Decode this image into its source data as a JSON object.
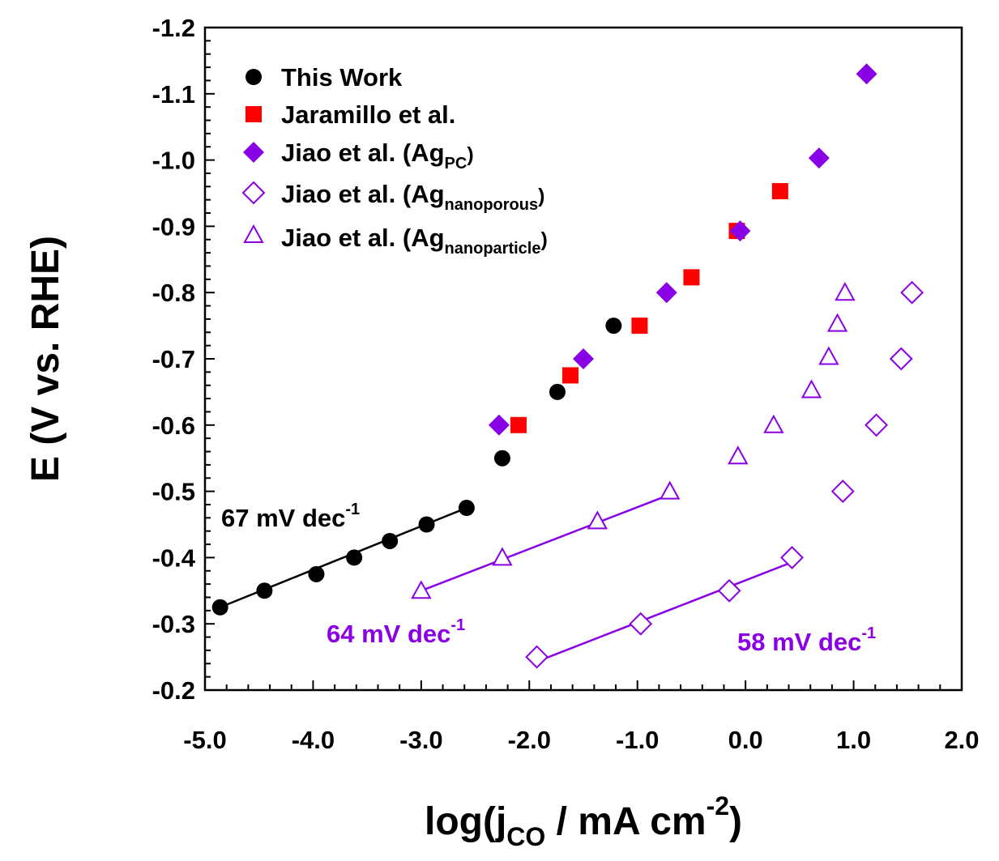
{
  "chart_data": {
    "type": "scatter",
    "title": "",
    "xlabel": {
      "main": "log(j",
      "sub": "CO",
      "rest": " / mA cm",
      "sup": "-2",
      "end": ")"
    },
    "ylabel": "E (V vs. RHE)",
    "xlim": [
      -5.0,
      2.0
    ],
    "ylim": [
      -0.2,
      -1.2
    ],
    "x_ticks": [
      -5.0,
      -4.0,
      -3.0,
      -2.0,
      -1.0,
      0.0,
      1.0,
      2.0
    ],
    "x_tick_labels": [
      "-5.0",
      "-4.0",
      "-3.0",
      "-2.0",
      "-1.0",
      "0.0",
      "1.0",
      "2.0"
    ],
    "y_ticks": [
      -0.2,
      -0.3,
      -0.4,
      -0.5,
      -0.6,
      -0.7,
      -0.8,
      -0.9,
      -1.0,
      -1.1,
      -1.2
    ],
    "y_tick_labels": [
      "-0.2",
      "-0.3",
      "-0.4",
      "-0.5",
      "-0.6",
      "-0.7",
      "-0.8",
      "-0.9",
      "-1.0",
      "-1.1",
      "-1.2"
    ],
    "grid": false,
    "legend_position": "top-left",
    "series": [
      {
        "name": "This Work",
        "marker": "circle-filled",
        "color": "#000000",
        "x": [
          -4.86,
          -4.45,
          -3.97,
          -3.62,
          -3.29,
          -2.95,
          -2.58,
          -2.25,
          -1.74,
          -1.22
        ],
        "y": [
          -0.325,
          -0.35,
          -0.375,
          -0.4,
          -0.425,
          -0.45,
          -0.475,
          -0.55,
          -0.65,
          -0.75
        ]
      },
      {
        "name": "Jaramillo et al.",
        "marker": "square-filled",
        "color": "#ff0000",
        "x": [
          -2.1,
          -1.62,
          -0.98,
          -0.5,
          -0.08,
          0.32
        ],
        "y": [
          -0.6,
          -0.675,
          -0.75,
          -0.823,
          -0.893,
          -0.953
        ]
      },
      {
        "name": "Jiao et al. (Ag",
        "name_sub": "PC",
        "name_end": ")",
        "marker": "diamond-filled",
        "color": "#8a00e6",
        "x": [
          -2.28,
          -1.5,
          -0.73,
          -0.05,
          0.68,
          1.12
        ],
        "y": [
          -0.6,
          -0.7,
          -0.8,
          -0.893,
          -1.003,
          -1.13
        ]
      },
      {
        "name": "Jiao et al. (Ag",
        "name_sub": "nanoporous",
        "name_end": ")",
        "marker": "diamond-open",
        "color": "#8a00e6",
        "x": [
          -1.93,
          -0.97,
          -0.15,
          0.43,
          0.9,
          1.21,
          1.44,
          1.54
        ],
        "y": [
          -0.25,
          -0.3,
          -0.35,
          -0.4,
          -0.5,
          -0.6,
          -0.7,
          -0.8
        ]
      },
      {
        "name": "Jiao et al. (Ag",
        "name_sub": "nanoparticle",
        "name_end": ")",
        "marker": "triangle-open",
        "color": "#8a00e6",
        "x": [
          -3.0,
          -2.25,
          -1.37,
          -0.7,
          -0.07,
          0.26,
          0.61,
          0.77,
          0.85,
          0.92
        ],
        "y": [
          -0.35,
          -0.4,
          -0.455,
          -0.5,
          -0.553,
          -0.6,
          -0.653,
          -0.703,
          -0.753,
          -0.8
        ]
      }
    ],
    "fit_lines": [
      {
        "color": "#000000",
        "x": [
          -4.86,
          -2.58
        ],
        "y": [
          -0.325,
          -0.475
        ]
      },
      {
        "color": "#8a00e6",
        "x": [
          -3.0,
          -0.7
        ],
        "y": [
          -0.35,
          -0.495
        ]
      },
      {
        "color": "#8a00e6",
        "x": [
          -1.93,
          0.43
        ],
        "y": [
          -0.243,
          -0.393
        ]
      }
    ],
    "annotations": [
      {
        "value": "67 mV dec",
        "sup": "-1",
        "color": "#000000"
      },
      {
        "value": "64 mV dec",
        "sup": "-1",
        "color": "#8a00e6"
      },
      {
        "value": "58 mV dec",
        "sup": "-1",
        "color": "#8a00e6"
      }
    ]
  }
}
